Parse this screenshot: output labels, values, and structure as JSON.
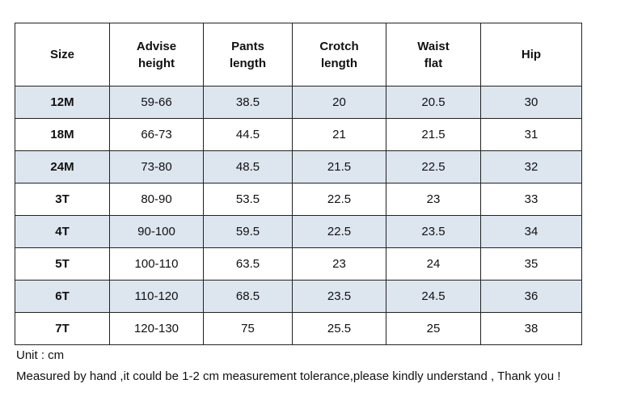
{
  "table": {
    "header": [
      "Size",
      "Advise\nheight",
      "Pants\nlength",
      "Crotch\nlength",
      "Waist\nflat",
      "Hip"
    ],
    "rows": [
      [
        "12M",
        "59-66",
        "38.5",
        "20",
        "20.5",
        "30"
      ],
      [
        "18M",
        "66-73",
        "44.5",
        "21",
        "21.5",
        "31"
      ],
      [
        "24M",
        "73-80",
        "48.5",
        "21.5",
        "22.5",
        "32"
      ],
      [
        "3T",
        "80-90",
        "53.5",
        "22.5",
        "23",
        "33"
      ],
      [
        "4T",
        "90-100",
        "59.5",
        "22.5",
        "23.5",
        "34"
      ],
      [
        "5T",
        "100-110",
        "63.5",
        "23",
        "24",
        "35"
      ],
      [
        "6T",
        "110-120",
        "68.5",
        "23.5",
        "24.5",
        "36"
      ],
      [
        "7T",
        "120-130",
        "75",
        "25.5",
        "25",
        "38"
      ]
    ]
  },
  "notes": [
    "Unit : cm",
    "Measured by hand ,it could be 1-2 cm measurement tolerance,please kindly understand , Thank you !"
  ]
}
